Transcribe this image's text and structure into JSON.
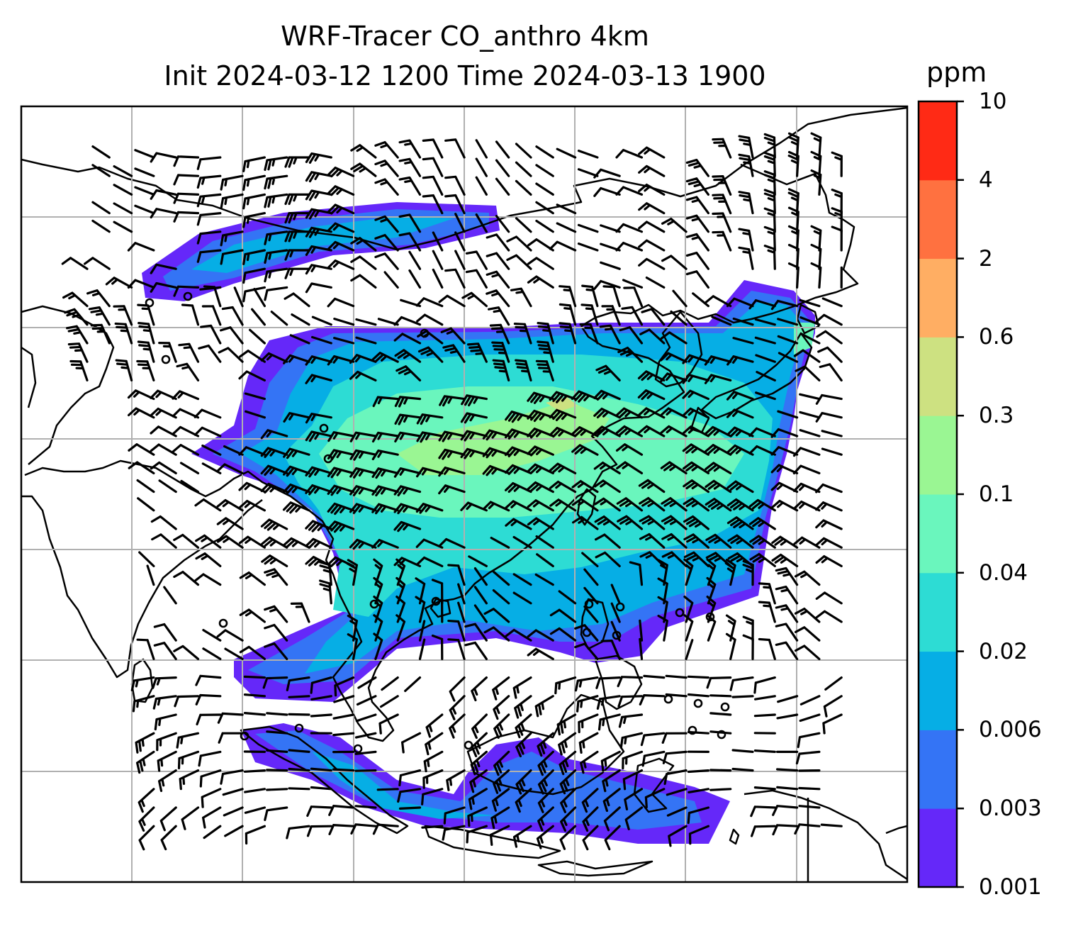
{
  "title": {
    "line1": "WRF-Tracer CO_anthro 4km",
    "line2": "Init 2024-03-12 1200 Time 2024-03-13 1900"
  },
  "colorbar": {
    "unit": "ppm",
    "labels": [
      "0.001",
      "0.003",
      "0.006",
      "0.02",
      "0.04",
      "0.1",
      "0.3",
      "0.6",
      "2",
      "4",
      "10"
    ],
    "colors": [
      "#6528f9",
      "#3474f5",
      "#06aee5",
      "#2ddcd4",
      "#6af6bd",
      "#9af693",
      "#cde181",
      "#ffae63",
      "#ff7140",
      "#ff2a15"
    ]
  },
  "map": {
    "field": "CO_anthro",
    "overlays": [
      "coastlines",
      "gridlines",
      "wind-barbs",
      "calm-circles"
    ]
  }
}
